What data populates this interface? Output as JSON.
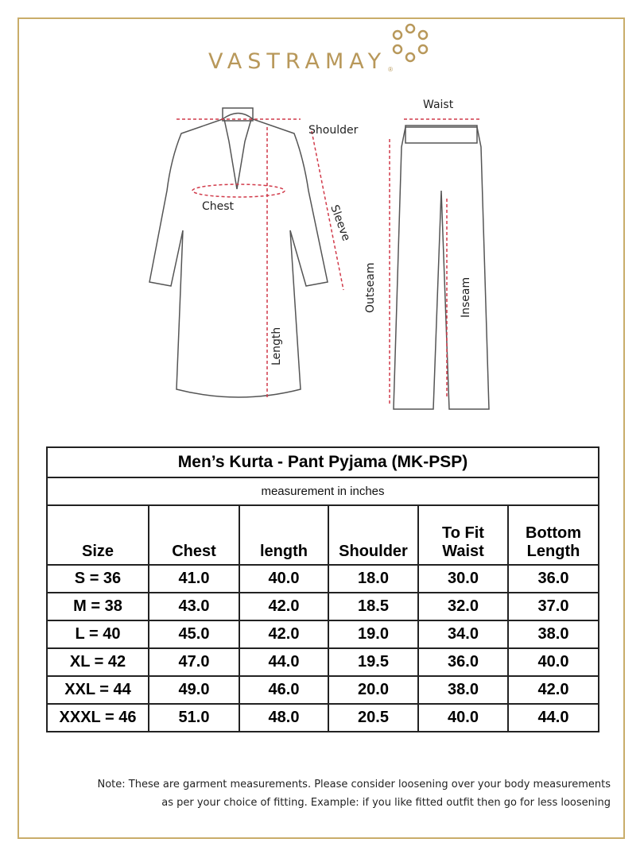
{
  "brand": {
    "name": "VASTRAMAY",
    "registered": "®",
    "color": "#b8985a"
  },
  "diagram": {
    "labels": {
      "shoulder": "Shoulder",
      "chest": "Chest",
      "sleeve": "Sleeve",
      "length": "Length",
      "waist": "Waist",
      "outseam": "Outseam",
      "inseam": "Inseam"
    }
  },
  "table": {
    "title": "Men’s Kurta - Pant Pyjama (MK-PSP)",
    "subtitle": "measurement in inches",
    "headers": [
      "Size",
      "Chest",
      "length",
      "Shoulder",
      "To Fit Waist",
      "Bottom Length"
    ],
    "rows": [
      [
        "S = 36",
        "41.0",
        "40.0",
        "18.0",
        "30.0",
        "36.0"
      ],
      [
        "M = 38",
        "43.0",
        "42.0",
        "18.5",
        "32.0",
        "37.0"
      ],
      [
        "L = 40",
        "45.0",
        "42.0",
        "19.0",
        "34.0",
        "38.0"
      ],
      [
        "XL = 42",
        "47.0",
        "44.0",
        "19.5",
        "36.0",
        "40.0"
      ],
      [
        "XXL = 44",
        "49.0",
        "46.0",
        "20.0",
        "38.0",
        "42.0"
      ],
      [
        "XXXL = 46",
        "51.0",
        "48.0",
        "20.5",
        "40.0",
        "44.0"
      ]
    ]
  },
  "note": {
    "line1": "Note: These are garment measurements. Please consider loosening over your body measurements",
    "line2": "as per your choice of fitting. Example: if you like fitted outfit then go for less loosening"
  }
}
